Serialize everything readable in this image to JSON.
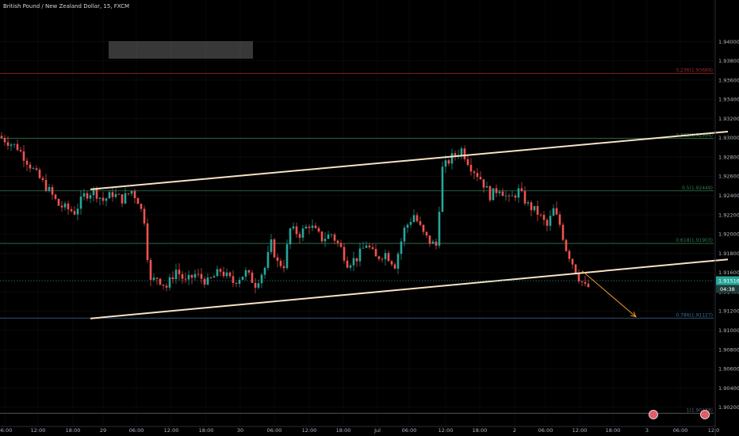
{
  "header": {
    "title": "British Pound / New Zealand Dollar, 15, FXCM"
  },
  "colors": {
    "background": "#000000",
    "up_candle": "#26a69a",
    "down_candle": "#ef5350",
    "channel_line": "#f7e2c4",
    "arrow": "#f59d2a",
    "fib_red": "#9c2b2b",
    "fib_green": "#2f7d4f",
    "fib_blue": "#3d6d9c",
    "price_badge": "#26a69a",
    "countdown_badge": "#1e3b3a",
    "event_marker": "#e35a6a"
  },
  "price_badge": {
    "price": "1.91516",
    "countdown": "04:38"
  },
  "chart_data": {
    "type": "candlestick",
    "title": "British Pound / New Zealand Dollar, 15, FXCM",
    "symbol": "GBPNZD",
    "interval": "15",
    "source": "FXCM",
    "ylim": [
      1.9005,
      1.9435
    ],
    "y_ticks": [
      "1.94000",
      "1.93800",
      "1.93600",
      "1.93400",
      "1.93200",
      "1.93000",
      "1.92800",
      "1.92600",
      "1.92400",
      "1.92200",
      "1.92000",
      "1.91800",
      "1.91600",
      "1.91400",
      "1.91200",
      "1.91000",
      "1.90800",
      "1.90600",
      "1.90400",
      "1.90200"
    ],
    "x_ticks": [
      "06:00",
      "12:00",
      "18:00",
      "29",
      "06:00",
      "12:00",
      "18:00",
      "30",
      "06:00",
      "12:00",
      "18:00",
      "Jul",
      "06:00",
      "12:00",
      "18:00",
      "2",
      "06:00",
      "12:00",
      "18:00",
      "3",
      "06:00",
      "12:0"
    ],
    "fib_levels": [
      {
        "label": "0.236(1.93669)",
        "value": 1.93669,
        "color": "#9c2b2b"
      },
      {
        "label": "0.382(1.92994)",
        "value": 1.92994,
        "color": "#2f7d4f"
      },
      {
        "label": "0.5(1.92449)",
        "value": 1.92449,
        "color": "#2f7d4f"
      },
      {
        "label": "0.618(1.91903)",
        "value": 1.91903,
        "color": "#2f7d4f"
      },
      {
        "label": "0.786(1.91127)",
        "value": 1.91127,
        "color": "#3d6d9c"
      },
      {
        "label": "1(1.90138)",
        "value": 1.90138,
        "color": "#5a5d66"
      }
    ],
    "current_price": 1.91516,
    "path_points": [
      [
        0,
        1.9302
      ],
      [
        6,
        1.929
      ],
      [
        12,
        1.9262
      ],
      [
        16,
        1.9245
      ],
      [
        19,
        1.923
      ],
      [
        24,
        1.9223
      ],
      [
        27,
        1.924
      ],
      [
        30,
        1.9245
      ],
      [
        33,
        1.9235
      ],
      [
        36,
        1.9242
      ],
      [
        39,
        1.9236
      ],
      [
        42,
        1.9245
      ],
      [
        44,
        1.9235
      ],
      [
        46,
        1.9215
      ],
      [
        47,
        1.9178
      ],
      [
        48,
        1.915
      ],
      [
        50,
        1.9155
      ],
      [
        53,
        1.9145
      ],
      [
        56,
        1.9163
      ],
      [
        59,
        1.915
      ],
      [
        62,
        1.9158
      ],
      [
        66,
        1.915
      ],
      [
        70,
        1.9162
      ],
      [
        74,
        1.915
      ],
      [
        78,
        1.916
      ],
      [
        81,
        1.9148
      ],
      [
        84,
        1.9165
      ],
      [
        86,
        1.919
      ],
      [
        88,
        1.917
      ],
      [
        90,
        1.9168
      ],
      [
        92,
        1.9205
      ],
      [
        95,
        1.92
      ],
      [
        98,
        1.921
      ],
      [
        102,
        1.9195
      ],
      [
        105,
        1.92
      ],
      [
        108,
        1.9185
      ],
      [
        110,
        1.917
      ],
      [
        113,
        1.9175
      ],
      [
        116,
        1.919
      ],
      [
        119,
        1.9175
      ],
      [
        122,
        1.918
      ],
      [
        125,
        1.9168
      ],
      [
        128,
        1.9205
      ],
      [
        131,
        1.922
      ],
      [
        134,
        1.92
      ],
      [
        136,
        1.9192
      ],
      [
        138,
        1.9188
      ],
      [
        140,
        1.9268
      ],
      [
        143,
        1.928
      ],
      [
        146,
        1.9288
      ],
      [
        149,
        1.927
      ],
      [
        152,
        1.9258
      ],
      [
        155,
        1.924
      ],
      [
        158,
        1.9248
      ],
      [
        161,
        1.9235
      ],
      [
        164,
        1.9245
      ],
      [
        167,
        1.923
      ],
      [
        170,
        1.9222
      ],
      [
        173,
        1.9208
      ],
      [
        175,
        1.9225
      ],
      [
        177,
        1.921
      ],
      [
        179,
        1.9185
      ],
      [
        181,
        1.917
      ],
      [
        183,
        1.9155
      ],
      [
        185,
        1.9145
      ]
    ],
    "channel": {
      "upper": [
        [
          28,
          1.92465
        ],
        [
          229,
          1.93065
        ]
      ],
      "lower": [
        [
          28,
          1.91123
        ],
        [
          229,
          1.91737
        ]
      ]
    },
    "projection_arrow": [
      [
        183,
        1.91618
      ],
      [
        200,
        1.9114
      ]
    ]
  }
}
